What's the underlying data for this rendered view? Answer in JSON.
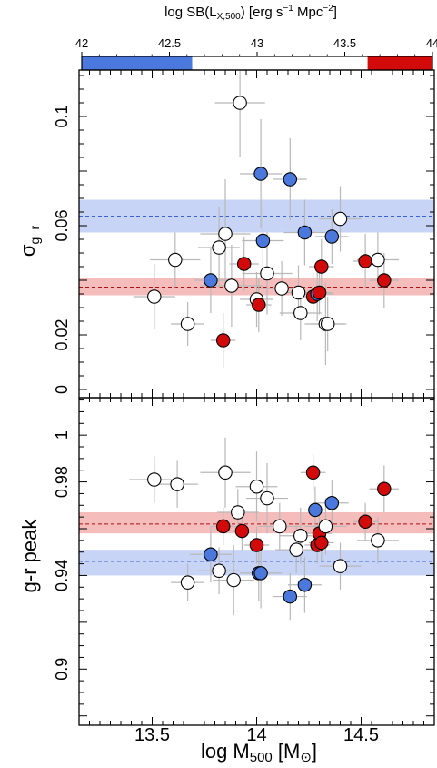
{
  "colorbar": {
    "title_prefix": "log SB(L",
    "title_sub": "X,500",
    "title_mid": ")  [erg s",
    "title_sup1": "−1",
    "title_mpc": " Mpc",
    "title_sup2": "−2",
    "title_end": "]",
    "range": [
      42,
      44
    ],
    "ticks": [
      "42",
      "42.5",
      "43",
      "43.5",
      "44"
    ],
    "segments": [
      {
        "from": 42.0,
        "to": 42.63,
        "color": "#4a78dc"
      },
      {
        "from": 42.63,
        "to": 43.63,
        "color": "#ffffff"
      },
      {
        "from": 43.63,
        "to": 44.0,
        "color": "#d20a0a"
      }
    ]
  },
  "colors": {
    "blue": "#4a78dc",
    "red": "#d20a0a",
    "white": "#ffffff",
    "blue_band": "#c8d4f5",
    "red_band": "#f5bcbc",
    "blue_line": "#3a62d8",
    "red_line": "#b01010",
    "errorbar": "#b8b8b8"
  },
  "x_axis": {
    "label_main": "log M",
    "label_sub": "500",
    "label_unit": "  [M",
    "label_sun": "⊙",
    "label_close": "]",
    "range": [
      13.15,
      14.85
    ],
    "ticks": [
      "13.5",
      "14",
      "14.5"
    ]
  },
  "chart_data": [
    {
      "type": "scatter",
      "panel": "top",
      "ylabel_main": "σ",
      "ylabel_sub": "g−r",
      "ylim": [
        -0.003,
        0.117
      ],
      "yticks": [
        "0",
        "0.02",
        "0.06",
        "0.1"
      ],
      "bands": [
        {
          "color": "blue",
          "center": 0.0635,
          "low": 0.0575,
          "high": 0.0695
        },
        {
          "color": "red",
          "center": 0.0375,
          "low": 0.0345,
          "high": 0.041
        }
      ],
      "points": [
        {
          "x": 13.51,
          "y": 0.034,
          "c": "white",
          "xe": 0.1,
          "ye": 0.012
        },
        {
          "x": 13.61,
          "y": 0.0475,
          "c": "white",
          "xe": 0.12,
          "ye": 0.01
        },
        {
          "x": 13.67,
          "y": 0.024,
          "c": "white",
          "xe": 0.08,
          "ye": 0.008
        },
        {
          "x": 13.78,
          "y": 0.04,
          "c": "blue",
          "xe": 0.08,
          "ye": 0.012
        },
        {
          "x": 13.82,
          "y": 0.052,
          "c": "white",
          "xe": 0.1,
          "ye": 0.015
        },
        {
          "x": 13.84,
          "y": 0.018,
          "c": "red",
          "xe": 0.06,
          "ye": 0.01
        },
        {
          "x": 13.85,
          "y": 0.057,
          "c": "white",
          "xe": 0.12,
          "ye": 0.02
        },
        {
          "x": 13.88,
          "y": 0.038,
          "c": "white",
          "xe": 0.15,
          "ye": 0.015
        },
        {
          "x": 13.92,
          "y": 0.105,
          "c": "white",
          "xe": 0.12,
          "ye": 0.02
        },
        {
          "x": 13.94,
          "y": 0.046,
          "c": "red",
          "xe": 0.07,
          "ye": 0.01
        },
        {
          "x": 14.0,
          "y": 0.033,
          "c": "white",
          "xe": 0.08,
          "ye": 0.01
        },
        {
          "x": 14.01,
          "y": 0.031,
          "c": "red",
          "xe": 0.06,
          "ye": 0.01
        },
        {
          "x": 14.02,
          "y": 0.079,
          "c": "blue",
          "xe": 0.1,
          "ye": 0.02
        },
        {
          "x": 14.03,
          "y": 0.0545,
          "c": "blue",
          "xe": 0.1,
          "ye": 0.012
        },
        {
          "x": 14.05,
          "y": 0.0425,
          "c": "white",
          "xe": 0.12,
          "ye": 0.015
        },
        {
          "x": 14.12,
          "y": 0.037,
          "c": "white",
          "xe": 0.1,
          "ye": 0.01
        },
        {
          "x": 14.16,
          "y": 0.077,
          "c": "blue",
          "xe": 0.08,
          "ye": 0.015
        },
        {
          "x": 14.2,
          "y": 0.0355,
          "c": "white",
          "xe": 0.1,
          "ye": 0.01
        },
        {
          "x": 14.21,
          "y": 0.028,
          "c": "white",
          "xe": 0.1,
          "ye": 0.01
        },
        {
          "x": 14.23,
          "y": 0.0575,
          "c": "blue",
          "xe": 0.1,
          "ye": 0.012
        },
        {
          "x": 14.27,
          "y": 0.034,
          "c": "red",
          "xe": 0.06,
          "ye": 0.008
        },
        {
          "x": 14.29,
          "y": 0.035,
          "c": "blue",
          "xe": 0.08,
          "ye": 0.01
        },
        {
          "x": 14.3,
          "y": 0.0355,
          "c": "red",
          "xe": 0.06,
          "ye": 0.008
        },
        {
          "x": 14.31,
          "y": 0.045,
          "c": "red",
          "xe": 0.06,
          "ye": 0.01
        },
        {
          "x": 14.33,
          "y": 0.024,
          "c": "white",
          "xe": 0.1,
          "ye": 0.015
        },
        {
          "x": 14.34,
          "y": 0.024,
          "c": "white",
          "xe": 0.08,
          "ye": 0.01
        },
        {
          "x": 14.36,
          "y": 0.056,
          "c": "blue",
          "xe": 0.08,
          "ye": 0.01
        },
        {
          "x": 14.4,
          "y": 0.0625,
          "c": "white",
          "xe": 0.1,
          "ye": 0.012
        },
        {
          "x": 14.52,
          "y": 0.047,
          "c": "red",
          "xe": 0.06,
          "ye": 0.01
        },
        {
          "x": 14.58,
          "y": 0.0475,
          "c": "white",
          "xe": 0.1,
          "ye": 0.01
        },
        {
          "x": 14.61,
          "y": 0.04,
          "c": "red",
          "xe": 0.07,
          "ye": 0.01
        }
      ]
    },
    {
      "type": "scatter",
      "panel": "bottom",
      "ylabel_main": "g-r peak",
      "ylim": [
        0.876,
        1.016
      ],
      "yticks": [
        "0.9",
        "0.94",
        "0.98",
        "1"
      ],
      "bands": [
        {
          "color": "red",
          "center": 0.962,
          "low": 0.958,
          "high": 0.967
        },
        {
          "color": "blue",
          "center": 0.946,
          "low": 0.94,
          "high": 0.951
        }
      ],
      "points": [
        {
          "x": 13.51,
          "y": 0.981,
          "c": "white",
          "xe": 0.12,
          "ye": 0.01
        },
        {
          "x": 13.62,
          "y": 0.979,
          "c": "white",
          "xe": 0.1,
          "ye": 0.01
        },
        {
          "x": 13.67,
          "y": 0.937,
          "c": "white",
          "xe": 0.08,
          "ye": 0.008
        },
        {
          "x": 13.78,
          "y": 0.949,
          "c": "blue",
          "xe": 0.1,
          "ye": 0.012
        },
        {
          "x": 13.82,
          "y": 0.942,
          "c": "white",
          "xe": 0.1,
          "ye": 0.01
        },
        {
          "x": 13.84,
          "y": 0.961,
          "c": "red",
          "xe": 0.06,
          "ye": 0.008
        },
        {
          "x": 13.85,
          "y": 0.984,
          "c": "white",
          "xe": 0.12,
          "ye": 0.015
        },
        {
          "x": 13.89,
          "y": 0.938,
          "c": "white",
          "xe": 0.1,
          "ye": 0.015
        },
        {
          "x": 13.91,
          "y": 0.967,
          "c": "white",
          "xe": 0.1,
          "ye": 0.01
        },
        {
          "x": 13.93,
          "y": 0.959,
          "c": "red",
          "xe": 0.07,
          "ye": 0.008
        },
        {
          "x": 14.0,
          "y": 0.978,
          "c": "white",
          "xe": 0.1,
          "ye": 0.015
        },
        {
          "x": 14.0,
          "y": 0.953,
          "c": "red",
          "xe": 0.06,
          "ye": 0.008
        },
        {
          "x": 14.01,
          "y": 0.941,
          "c": "blue",
          "xe": 0.08,
          "ye": 0.012
        },
        {
          "x": 14.02,
          "y": 0.941,
          "c": "blue",
          "xe": 0.1,
          "ye": 0.015
        },
        {
          "x": 14.05,
          "y": 0.973,
          "c": "white",
          "xe": 0.1,
          "ye": 0.015
        },
        {
          "x": 14.11,
          "y": 0.961,
          "c": "white",
          "xe": 0.1,
          "ye": 0.01
        },
        {
          "x": 14.16,
          "y": 0.931,
          "c": "blue",
          "xe": 0.08,
          "ye": 0.01
        },
        {
          "x": 14.19,
          "y": 0.951,
          "c": "white",
          "xe": 0.1,
          "ye": 0.01
        },
        {
          "x": 14.21,
          "y": 0.957,
          "c": "white",
          "xe": 0.1,
          "ye": 0.012
        },
        {
          "x": 14.23,
          "y": 0.936,
          "c": "blue",
          "xe": 0.08,
          "ye": 0.012
        },
        {
          "x": 14.27,
          "y": 0.984,
          "c": "red",
          "xe": 0.06,
          "ye": 0.008
        },
        {
          "x": 14.28,
          "y": 0.968,
          "c": "blue",
          "xe": 0.08,
          "ye": 0.01
        },
        {
          "x": 14.29,
          "y": 0.953,
          "c": "red",
          "xe": 0.06,
          "ye": 0.008
        },
        {
          "x": 14.3,
          "y": 0.958,
          "c": "red",
          "xe": 0.06,
          "ye": 0.008
        },
        {
          "x": 14.31,
          "y": 0.954,
          "c": "red",
          "xe": 0.06,
          "ye": 0.008
        },
        {
          "x": 14.33,
          "y": 0.961,
          "c": "white",
          "xe": 0.1,
          "ye": 0.012
        },
        {
          "x": 14.36,
          "y": 0.971,
          "c": "blue",
          "xe": 0.08,
          "ye": 0.01
        },
        {
          "x": 14.4,
          "y": 0.944,
          "c": "white",
          "xe": 0.1,
          "ye": 0.01
        },
        {
          "x": 14.52,
          "y": 0.963,
          "c": "red",
          "xe": 0.06,
          "ye": 0.008
        },
        {
          "x": 14.58,
          "y": 0.955,
          "c": "white",
          "xe": 0.1,
          "ye": 0.01
        },
        {
          "x": 14.61,
          "y": 0.977,
          "c": "red",
          "xe": 0.07,
          "ye": 0.01
        }
      ]
    }
  ]
}
